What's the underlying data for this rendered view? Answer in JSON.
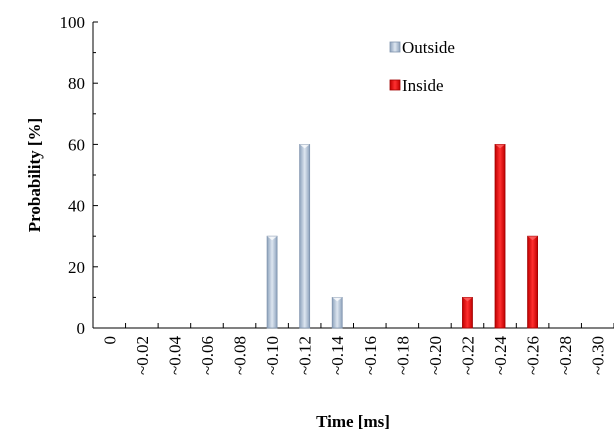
{
  "chart_data": {
    "type": "bar",
    "xlabel": "Time [ms]",
    "ylabel": "Probability [%]",
    "ylim": [
      0,
      100
    ],
    "yticks": [
      0,
      20,
      40,
      60,
      80,
      100
    ],
    "categories": [
      "0",
      "~0.02",
      "~0.04",
      "~0.06",
      "~0.08",
      "~0.10",
      "~0.12",
      "~0.14",
      "~0.16",
      "~0.18",
      "~0.20",
      "~0.22",
      "~0.24",
      "~0.26",
      "~0.28",
      "~0.30"
    ],
    "series": [
      {
        "name": "Outside",
        "color": "#b3c3d6",
        "values": [
          0,
          0,
          0,
          0,
          0,
          30,
          60,
          10,
          0,
          0,
          0,
          0,
          0,
          0,
          0,
          0
        ]
      },
      {
        "name": "Inside",
        "color": "#e01010",
        "values": [
          0,
          0,
          0,
          0,
          0,
          0,
          0,
          0,
          0,
          0,
          0,
          10,
          60,
          30,
          0,
          0
        ]
      }
    ],
    "grid": false,
    "legend_position": "top-right"
  }
}
